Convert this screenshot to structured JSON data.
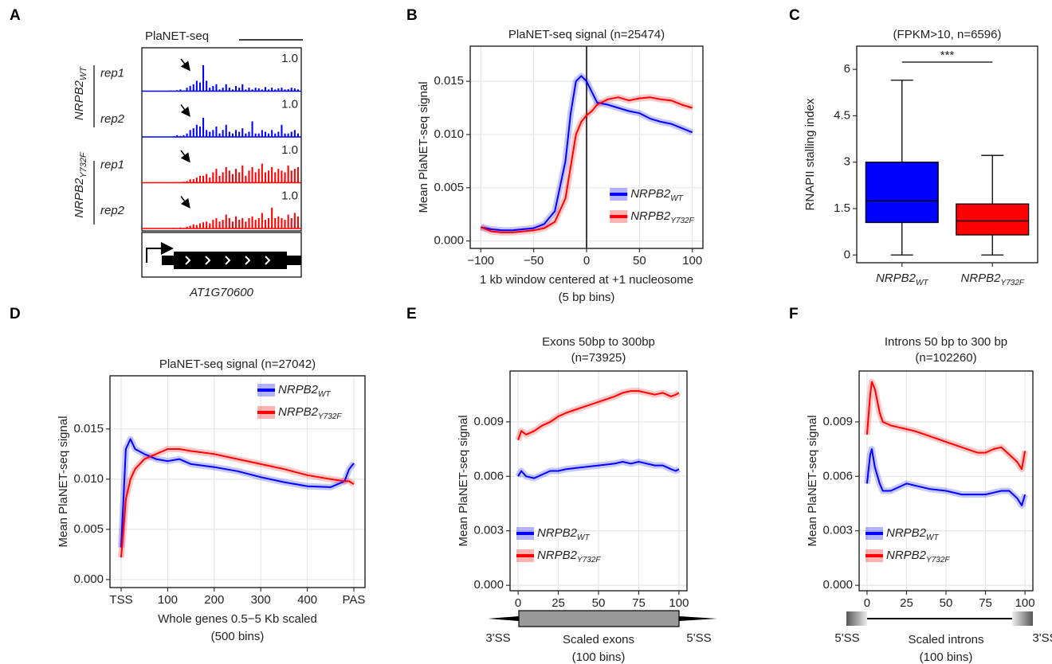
{
  "chart_data": [
    {
      "type": "tracks",
      "panel": "A",
      "title": "PlaNET-seq",
      "gene": "AT1G70600",
      "groups": [
        {
          "name": "NRPB2",
          "name_sub": "WT",
          "color": "#0000ff",
          "tracks": [
            {
              "name": "rep1",
              "scale": {
                "value": 1,
                "label": "1.0"
              },
              "values": [
                0.02,
                0,
                0.03,
                0.05,
                0.02,
                0.1,
                0.15,
                0.2,
                0.3,
                0.25,
                0.75,
                0.3,
                0.1,
                0.15,
                0.2,
                0.05,
                0.1,
                0.2,
                0.1,
                0.05,
                0.15,
                0.1,
                0.2,
                0.05,
                0.1,
                0.05,
                0.1,
                0.08,
                0.05,
                0.12,
                0.05,
                0.1,
                0.05,
                0.08,
                0.1,
                0.05,
                0.06,
                0.1,
                0.08,
                0.05
              ]
            },
            {
              "name": "rep2",
              "scale": {
                "value": 1,
                "label": "1.0"
              },
              "values": [
                0,
                0.02,
                0.05,
                0.03,
                0.05,
                0.1,
                0.2,
                0.25,
                0.35,
                0.3,
                0.55,
                0.2,
                0.15,
                0.2,
                0.3,
                0.1,
                0.2,
                0.35,
                0.15,
                0.1,
                0.2,
                0.15,
                0.25,
                0.1,
                0.15,
                0.45,
                0.1,
                0.1,
                0.2,
                0.15,
                0.1,
                0.2,
                0.1,
                0.15,
                0.35,
                0.1,
                0.1,
                0.15,
                0.2,
                0.1
              ]
            }
          ]
        },
        {
          "name": "NRPB2",
          "name_sub": "Y732F",
          "color": "#ff0000",
          "tracks": [
            {
              "name": "rep1",
              "scale": {
                "value": 1,
                "label": "1.0"
              },
              "values": [
                0,
                0,
                0.02,
                0.02,
                0.03,
                0.05,
                0.1,
                0.1,
                0.15,
                0.2,
                0.2,
                0.25,
                0.15,
                0.3,
                0.4,
                0.2,
                0.3,
                0.45,
                0.35,
                0.25,
                0.4,
                0.3,
                0.5,
                0.2,
                0.35,
                0.45,
                0.3,
                0.4,
                0.55,
                0.3,
                0.35,
                0.45,
                0.3,
                0.4,
                0.35,
                0.3,
                0.5,
                0.35,
                0.4,
                0.45
              ]
            },
            {
              "name": "rep2",
              "scale": {
                "value": 1,
                "label": "1.0"
              },
              "values": [
                0,
                0.02,
                0,
                0.03,
                0.02,
                0.05,
                0.08,
                0.12,
                0.1,
                0.15,
                0.18,
                0.2,
                0.15,
                0.25,
                0.3,
                0.2,
                0.25,
                0.4,
                0.3,
                0.2,
                0.35,
                0.25,
                0.3,
                0.2,
                0.3,
                0.35,
                0.25,
                0.3,
                0.45,
                0.25,
                0.3,
                0.6,
                0.3,
                0.35,
                0.3,
                0.25,
                0.4,
                0.3,
                0.45,
                0.35
              ]
            }
          ]
        }
      ]
    },
    {
      "type": "line",
      "panel": "B",
      "title": "PlaNET-seq signal (n=25474)",
      "xlabel": "1 kb window centered at +1 nucleosome",
      "xlabel_note": "(5 bp bins)",
      "ylabel": "Mean PlaNET-seq signal",
      "x": [
        -100,
        -90,
        -80,
        -70,
        -60,
        -50,
        -40,
        -30,
        -20,
        -15,
        -10,
        -5,
        0,
        5,
        10,
        20,
        30,
        40,
        50,
        60,
        70,
        80,
        90,
        100
      ],
      "series": [
        {
          "name": "NRPB2",
          "name_sub": "WT",
          "color": "#0000ff",
          "values": [
            0.0013,
            0.0011,
            0.001,
            0.001,
            0.0011,
            0.0012,
            0.0016,
            0.0028,
            0.0075,
            0.012,
            0.015,
            0.0155,
            0.015,
            0.014,
            0.013,
            0.0128,
            0.0125,
            0.0122,
            0.012,
            0.0115,
            0.0112,
            0.011,
            0.0106,
            0.0102
          ]
        },
        {
          "name": "NRPB2",
          "name_sub": "Y732F",
          "color": "#ff0000",
          "values": [
            0.0013,
            0.0009,
            0.0008,
            0.0008,
            0.0009,
            0.001,
            0.0012,
            0.0018,
            0.004,
            0.007,
            0.01,
            0.0112,
            0.0118,
            0.0122,
            0.0128,
            0.0133,
            0.0135,
            0.0132,
            0.0134,
            0.0135,
            0.0133,
            0.0132,
            0.0128,
            0.0125
          ]
        }
      ],
      "vline": 0,
      "xlim": [
        -110,
        110
      ],
      "xticks": [
        {
          "value": -100,
          "label": "−100"
        },
        {
          "value": -50,
          "label": "−50"
        },
        0,
        50,
        100
      ],
      "ylim": [
        -0.0007,
        0.0183
      ],
      "yticks": [
        {
          "value": 0,
          "label": "0.000"
        },
        0.005,
        {
          "value": 0.01,
          "label": "0.010"
        },
        0.015
      ],
      "grid": true,
      "legend": "lower right"
    },
    {
      "type": "box",
      "panel": "C",
      "title": "(FPKM>10, n=6596)",
      "ylabel": "RNAPII stalling index",
      "significance": "***",
      "series": [
        {
          "name": "NRPB2",
          "name_sub": "WT",
          "color": "#0000ff",
          "whislo": 0,
          "q1": 1.05,
          "med": 1.75,
          "q3": 3.0,
          "whishi": 5.65
        },
        {
          "name": "NRPB2",
          "name_sub": "Y732F",
          "color": "#ff0000",
          "whislo": 0,
          "q1": 0.65,
          "med": 1.1,
          "q3": 1.65,
          "whishi": 3.22
        }
      ],
      "ylim": [
        -0.25,
        6.75
      ],
      "yticks": [
        0,
        1.5,
        3,
        4.5,
        6
      ],
      "grid": false
    },
    {
      "type": "line",
      "panel": "D",
      "title": "PlaNET-seq signal (n=27042)",
      "xlabel": "Whole genes 0.5−5 Kb scaled",
      "xlabel_note": "(500 bins)",
      "ylabel": "Mean PlaNET-seq signal",
      "x": [
        0,
        5,
        10,
        20,
        30,
        50,
        75,
        100,
        125,
        150,
        200,
        250,
        300,
        350,
        400,
        450,
        480,
        490,
        500
      ],
      "series": [
        {
          "name": "NRPB2",
          "name_sub": "WT",
          "color": "#0000ff",
          "values": [
            0.0032,
            0.008,
            0.013,
            0.014,
            0.013,
            0.0125,
            0.012,
            0.0118,
            0.012,
            0.0115,
            0.0112,
            0.0108,
            0.0102,
            0.0097,
            0.0093,
            0.0092,
            0.0098,
            0.011,
            0.0116
          ]
        },
        {
          "name": "NRPB2",
          "name_sub": "Y732F",
          "color": "#ff0000",
          "values": [
            0.0022,
            0.005,
            0.008,
            0.01,
            0.011,
            0.012,
            0.0125,
            0.013,
            0.013,
            0.0128,
            0.0125,
            0.012,
            0.0115,
            0.011,
            0.0104,
            0.01,
            0.0098,
            0.0098,
            0.0095
          ]
        }
      ],
      "xlim": [
        -24,
        524
      ],
      "xticks": [
        {
          "value": 0,
          "label": "TSS"
        },
        100,
        200,
        300,
        400,
        {
          "value": 500,
          "label": "PAS"
        }
      ],
      "ylim": [
        -0.0008,
        0.0203
      ],
      "yticks": [
        {
          "value": 0,
          "label": "0.000"
        },
        0.005,
        {
          "value": 0.01,
          "label": "0.010"
        },
        0.015
      ],
      "grid": true,
      "legend": "upper right"
    },
    {
      "type": "line",
      "panel": "E",
      "title": "Exons 50bp to 300bp",
      "subtitle": "(n=73925)",
      "ylabel": "Mean PlaNET-seq signal",
      "diagram": {
        "left": "3'SS",
        "right": "5'SS",
        "label": "Scaled exons",
        "note": "(100 bins)"
      },
      "x": [
        0,
        2,
        5,
        10,
        15,
        20,
        25,
        30,
        40,
        50,
        60,
        65,
        70,
        75,
        80,
        85,
        90,
        95,
        98,
        100
      ],
      "series": [
        {
          "name": "NRPB2",
          "name_sub": "WT",
          "color": "#0000ff",
          "values": [
            0.006,
            0.0063,
            0.006,
            0.0059,
            0.0061,
            0.0063,
            0.0063,
            0.0064,
            0.0065,
            0.0066,
            0.0067,
            0.0068,
            0.0067,
            0.0068,
            0.0067,
            0.0066,
            0.0066,
            0.0064,
            0.0063,
            0.0064
          ]
        },
        {
          "name": "NRPB2",
          "name_sub": "Y732F",
          "color": "#ff0000",
          "values": [
            0.008,
            0.0085,
            0.0083,
            0.0085,
            0.0088,
            0.009,
            0.0093,
            0.0095,
            0.0098,
            0.0101,
            0.0104,
            0.0106,
            0.0107,
            0.0107,
            0.0106,
            0.0105,
            0.0106,
            0.0104,
            0.0105,
            0.0106
          ]
        }
      ],
      "xlim": [
        -5,
        105
      ],
      "xticks": [
        0,
        25,
        50,
        75,
        100
      ],
      "ylim": [
        -0.0003,
        0.0118
      ],
      "yticks": [
        {
          "value": 0,
          "label": "0.000"
        },
        0.003,
        0.006,
        0.009
      ],
      "grid": true,
      "legend": "lower left"
    },
    {
      "type": "line",
      "panel": "F",
      "title": "Introns 50 bp to 300 bp",
      "subtitle": "(n=102260)",
      "ylabel": "Mean PlaNET-seq signal",
      "diagram": {
        "left": "5'SS",
        "right": "3'SS",
        "label": "Scaled introns",
        "note": "(100 bins)"
      },
      "x": [
        0,
        2,
        3,
        5,
        8,
        10,
        15,
        20,
        25,
        30,
        40,
        50,
        60,
        70,
        75,
        80,
        85,
        90,
        95,
        98,
        100
      ],
      "series": [
        {
          "name": "NRPB2",
          "name_sub": "WT",
          "color": "#0000ff",
          "values": [
            0.0056,
            0.0072,
            0.0075,
            0.0065,
            0.0056,
            0.0052,
            0.0052,
            0.0054,
            0.0056,
            0.0055,
            0.0053,
            0.0052,
            0.005,
            0.005,
            0.005,
            0.0051,
            0.0052,
            0.0052,
            0.0048,
            0.0044,
            0.005
          ]
        },
        {
          "name": "NRPB2",
          "name_sub": "Y732F",
          "color": "#ff0000",
          "values": [
            0.0083,
            0.0105,
            0.0112,
            0.0108,
            0.0095,
            0.009,
            0.0088,
            0.0087,
            0.0086,
            0.0085,
            0.0082,
            0.0079,
            0.0076,
            0.0073,
            0.0073,
            0.0075,
            0.0076,
            0.0072,
            0.0068,
            0.0064,
            0.0074
          ]
        }
      ],
      "xlim": [
        -5,
        105
      ],
      "xticks": [
        0,
        25,
        50,
        75,
        100
      ],
      "ylim": [
        -0.0003,
        0.0118
      ],
      "yticks": [
        {
          "value": 0,
          "label": "0.000"
        },
        0.003,
        0.006,
        0.009
      ],
      "grid": true,
      "legend": "lower left"
    }
  ]
}
